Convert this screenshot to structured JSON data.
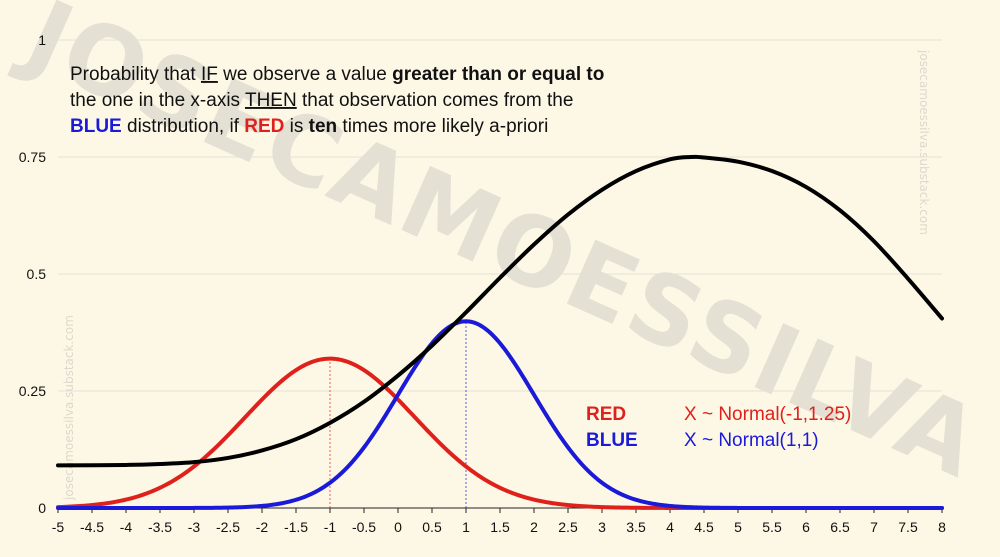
{
  "chart_data": {
    "type": "line",
    "annotation": {
      "line1": [
        {
          "text": "Probability that ",
          "style": "normal"
        },
        {
          "text": "IF",
          "style": "underline"
        },
        {
          "text": " we observe a value ",
          "style": "normal"
        },
        {
          "text": "greater than or equal to",
          "style": "bold"
        }
      ],
      "line2": [
        {
          "text": "the one in the x-axis ",
          "style": "normal"
        },
        {
          "text": "THEN",
          "style": "underline"
        },
        {
          "text": " that observation comes from the",
          "style": "normal"
        }
      ],
      "line3": [
        {
          "text": "BLUE",
          "style": "bold-blue"
        },
        {
          "text": " distribution, if ",
          "style": "normal"
        },
        {
          "text": "RED",
          "style": "bold-red"
        },
        {
          "text": " is ",
          "style": "normal"
        },
        {
          "text": "ten",
          "style": "bold"
        },
        {
          "text": " times more likely a-priori",
          "style": "normal"
        }
      ]
    },
    "xlim": [
      -5,
      8
    ],
    "ylim": [
      0,
      1
    ],
    "x_ticks": [
      "-5",
      "-4.5",
      "-4",
      "-3.5",
      "-3",
      "-2.5",
      "-2",
      "-1.5",
      "-1",
      "-0.5",
      "0",
      "0.5",
      "1",
      "1.5",
      "2",
      "2.5",
      "3",
      "3.5",
      "4",
      "4.5",
      "5",
      "5.5",
      "6",
      "6.5",
      "7",
      "7.5",
      "8"
    ],
    "y_ticks": [
      "0",
      "0.25",
      "0.5",
      "0.75",
      "1"
    ],
    "grid": true,
    "legend": [
      {
        "name": "RED",
        "desc": "X ~ Normal(-1,1.25)",
        "color": "#e0211b"
      },
      {
        "name": "BLUE",
        "desc": "X ~ Normal(1,1)",
        "color": "#1a1ad8"
      }
    ],
    "series": [
      {
        "name": "RED",
        "color": "#e0211b",
        "distribution": {
          "family": "normal",
          "mean": -1,
          "sd": 1.25
        }
      },
      {
        "name": "BLUE",
        "color": "#1a1ad8",
        "distribution": {
          "family": "normal",
          "mean": 1,
          "sd": 1
        }
      },
      {
        "color": "#000000",
        "x": [
          -5,
          -4,
          -3.5,
          -3,
          -2.5,
          -2,
          -1.5,
          -1,
          -0.5,
          0,
          0.5,
          1,
          1.5,
          2,
          2.5,
          3,
          3.5,
          4,
          4.3,
          4.5,
          5,
          5.5,
          6,
          6.5,
          7,
          7.5,
          8
        ],
        "y": [
          0.091,
          0.092,
          0.094,
          0.098,
          0.107,
          0.123,
          0.147,
          0.182,
          0.227,
          0.283,
          0.347,
          0.418,
          0.492,
          0.563,
          0.627,
          0.68,
          0.72,
          0.745,
          0.75,
          0.749,
          0.74,
          0.72,
          0.686,
          0.636,
          0.57,
          0.49,
          0.405
        ]
      }
    ],
    "mean_markers": [
      {
        "x": -1,
        "series": "RED"
      },
      {
        "x": 1,
        "series": "BLUE"
      }
    ]
  },
  "watermark": {
    "big": "JOSECAMOESSILVA",
    "small": "josecamoessilva.substack.com"
  }
}
